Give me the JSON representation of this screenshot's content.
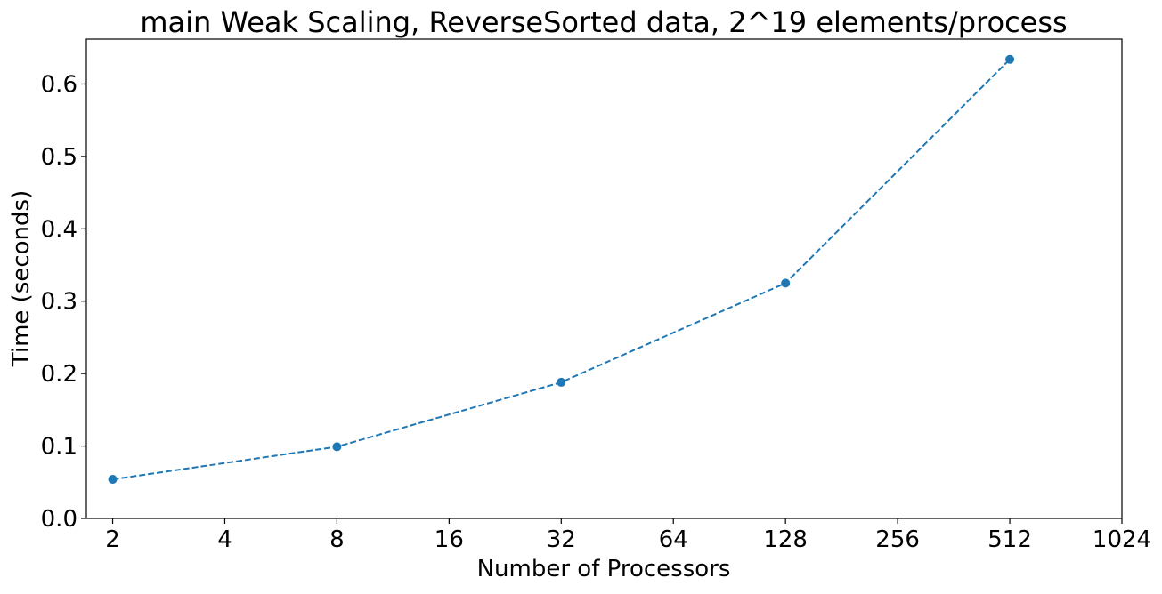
{
  "chart_data": {
    "type": "line",
    "title": "main Weak Scaling, ReverseSorted data, 2^19 elements/process",
    "xlabel": "Number of Processors",
    "ylabel": "Time (seconds)",
    "x_scale": "log2",
    "x_ticks": [
      2,
      4,
      8,
      16,
      32,
      64,
      128,
      256,
      512,
      1024
    ],
    "x_tick_labels": [
      "2",
      "4",
      "8",
      "16",
      "32",
      "64",
      "128",
      "256",
      "512",
      "1024"
    ],
    "xlim": [
      1.7,
      1024
    ],
    "y_ticks": [
      0.0,
      0.1,
      0.2,
      0.3,
      0.4,
      0.5,
      0.6
    ],
    "y_tick_labels": [
      "0.0",
      "0.1",
      "0.2",
      "0.3",
      "0.4",
      "0.5",
      "0.6"
    ],
    "ylim": [
      0.0,
      0.662
    ],
    "grid": false,
    "series": [
      {
        "x": [
          2,
          8,
          32,
          128,
          512
        ],
        "y": [
          0.054,
          0.099,
          0.188,
          0.325,
          0.634
        ],
        "color": "#1f77b4",
        "line_style": "dashed",
        "marker": "circle"
      }
    ]
  }
}
